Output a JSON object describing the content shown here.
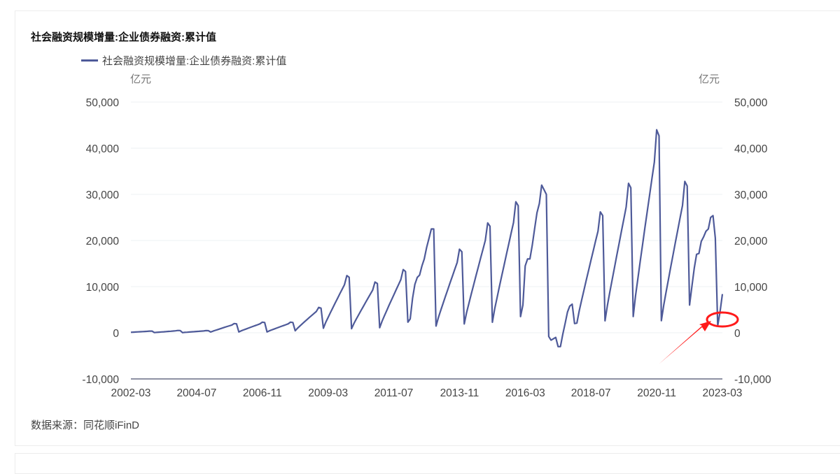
{
  "header": {
    "title": "社会融资规模增量:企业债券融资:累计值"
  },
  "legend": {
    "items": [
      {
        "label": "社会融资规模增量:企业债券融资:累计值",
        "color": "#4e5a99"
      }
    ]
  },
  "axes": {
    "left_unit": "亿元",
    "right_unit": "亿元",
    "y_ticks": [
      "50,000",
      "40,000",
      "30,000",
      "20,000",
      "10,000",
      "0",
      "-10,000"
    ],
    "x_ticks": [
      "2002-03",
      "2004-07",
      "2006-11",
      "2009-03",
      "2011-07",
      "2013-11",
      "2016-03",
      "2018-07",
      "2020-11",
      "2023-03"
    ]
  },
  "footer": {
    "source": "数据来源：同花顺iFinD"
  },
  "annotation": {
    "highlight": "red-ellipse-around-latest-low-point",
    "color": "#ff1a1a"
  },
  "chart_data": {
    "type": "line",
    "title": "社会融资规模增量:企业债券融资:累计值",
    "xlabel": "",
    "ylabel": "亿元",
    "y2label": "亿元",
    "ylim": [
      -10000,
      50000
    ],
    "grid": true,
    "legend_position": "top-left",
    "x_range": [
      "2002-03",
      "2023-03"
    ],
    "x_tick_labels": [
      "2002-03",
      "2004-07",
      "2006-11",
      "2009-03",
      "2011-07",
      "2013-11",
      "2016-03",
      "2018-07",
      "2020-11",
      "2023-03"
    ],
    "series": [
      {
        "name": "社会融资规模增量:企业债券融资:累计值",
        "color": "#4e5a99",
        "frequency": "monthly, cumulative year-to-date",
        "annual_peaks": {
          "2002": 370,
          "2003": 500,
          "2004": 470,
          "2005": 2000,
          "2006": 2300,
          "2007": 2300,
          "2008": 5500,
          "2009": 12400,
          "2010": 11000,
          "2011": 13700,
          "2012": 22500,
          "2013": 18100,
          "2014": 23800,
          "2015": 28400,
          "2016": 32000,
          "2017": 6200,
          "2018": 26200,
          "2019": 32400,
          "2020": 44000,
          "2021": 32800,
          "2022": 25400
        },
        "notable_points": [
          {
            "x": "2017-05",
            "y": -3000
          },
          {
            "x": "2023-01",
            "y": 1500
          },
          {
            "x": "2023-03",
            "y": 8400
          }
        ]
      }
    ]
  }
}
